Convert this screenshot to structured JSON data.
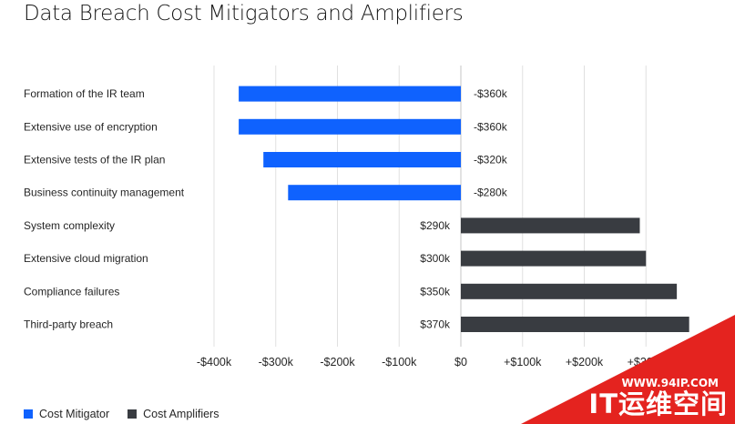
{
  "chart_data": {
    "type": "bar",
    "orientation": "horizontal",
    "title": "Data Breach Cost Mitigators and Amplifiers",
    "categories": [
      "Formation of the IR team",
      "Extensive use of encryption",
      "Extensive tests of the IR plan",
      "Business continuity management",
      "System complexity",
      "Extensive cloud migration",
      "Compliance failures",
      "Third-party breach"
    ],
    "values": [
      -360,
      -360,
      -320,
      -280,
      290,
      300,
      350,
      370
    ],
    "value_labels": [
      "-$360k",
      "-$360k",
      "-$320k",
      "-$280k",
      "$290k",
      "$300k",
      "$350k",
      "$370k"
    ],
    "groups": [
      "mitigator",
      "mitigator",
      "mitigator",
      "mitigator",
      "amplifier",
      "amplifier",
      "amplifier",
      "amplifier"
    ],
    "xlim": [
      -400,
      400
    ],
    "xticks": [
      -400,
      -300,
      -200,
      -100,
      0,
      100,
      200,
      300
    ],
    "xtick_labels": [
      "-$400k",
      "-$300k",
      "-$200k",
      "-$100k",
      "$0",
      "+$100k",
      "+$200k",
      "+$300k"
    ],
    "grid": true,
    "legend_position": "bottom-left",
    "series": [
      {
        "name": "Cost Mitigator",
        "color": "#0f62fe"
      },
      {
        "name": "Cost Amplifiers",
        "color": "#393c41"
      }
    ]
  },
  "watermark": {
    "url": "WWW.94IP.COM",
    "brand": "IT运维空间"
  }
}
